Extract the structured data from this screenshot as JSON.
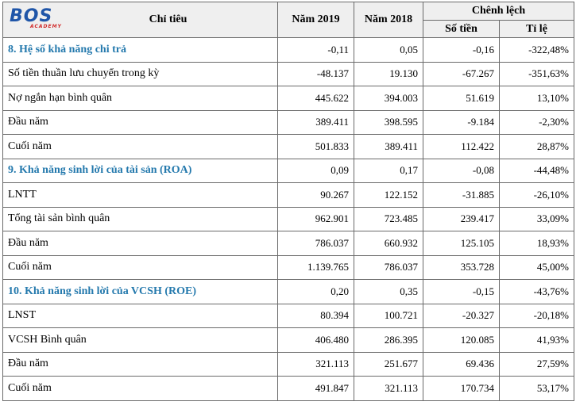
{
  "logo": {
    "main": "BOS",
    "sub": "ACADEMY"
  },
  "headers": {
    "indicator": "Chỉ tiêu",
    "year2019": "Năm 2019",
    "year2018": "Năm 2018",
    "difference": "Chênh lệch",
    "amount": "Số tiền",
    "ratio": "Tỉ lệ"
  },
  "rows": [
    {
      "label": "8. Hệ số khả năng chi trả",
      "y2019": "-0,11",
      "y2018": "0,05",
      "amount": "-0,16",
      "ratio": "-322,48%",
      "section": true
    },
    {
      "label": "Số tiền thuần lưu chuyển trong kỳ",
      "y2019": "-48.137",
      "y2018": "19.130",
      "amount": "-67.267",
      "ratio": "-351,63%",
      "section": false
    },
    {
      "label": "Nợ ngắn hạn bình quân",
      "y2019": "445.622",
      "y2018": "394.003",
      "amount": "51.619",
      "ratio": "13,10%",
      "section": false
    },
    {
      "label": "Đầu năm",
      "y2019": "389.411",
      "y2018": "398.595",
      "amount": "-9.184",
      "ratio": "-2,30%",
      "section": false
    },
    {
      "label": "Cuối năm",
      "y2019": "501.833",
      "y2018": "389.411",
      "amount": "112.422",
      "ratio": "28,87%",
      "section": false
    },
    {
      "label": "9. Khả năng sinh lời của tài sản (ROA)",
      "y2019": "0,09",
      "y2018": "0,17",
      "amount": "-0,08",
      "ratio": "-44,48%",
      "section": true
    },
    {
      "label": "LNTT",
      "y2019": "90.267",
      "y2018": "122.152",
      "amount": "-31.885",
      "ratio": "-26,10%",
      "section": false
    },
    {
      "label": "Tổng tài sản bình quân",
      "y2019": "962.901",
      "y2018": "723.485",
      "amount": "239.417",
      "ratio": "33,09%",
      "section": false
    },
    {
      "label": "Đầu năm",
      "y2019": "786.037",
      "y2018": "660.932",
      "amount": "125.105",
      "ratio": "18,93%",
      "section": false
    },
    {
      "label": "Cuối năm",
      "y2019": "1.139.765",
      "y2018": "786.037",
      "amount": "353.728",
      "ratio": "45,00%",
      "section": false
    },
    {
      "label": "10. Khả năng sinh lời của VCSH (ROE)",
      "y2019": "0,20",
      "y2018": "0,35",
      "amount": "-0,15",
      "ratio": "-43,76%",
      "section": true
    },
    {
      "label": "LNST",
      "y2019": "80.394",
      "y2018": "100.721",
      "amount": "-20.327",
      "ratio": "-20,18%",
      "section": false
    },
    {
      "label": "VCSH Bình quân",
      "y2019": "406.480",
      "y2018": "286.395",
      "amount": "120.085",
      "ratio": "41,93%",
      "section": false
    },
    {
      "label": "Đầu năm",
      "y2019": "321.113",
      "y2018": "251.677",
      "amount": "69.436",
      "ratio": "27,59%",
      "section": false
    },
    {
      "label": "Cuối năm",
      "y2019": "491.847",
      "y2018": "321.113",
      "amount": "170.734",
      "ratio": "53,17%",
      "section": false
    }
  ]
}
